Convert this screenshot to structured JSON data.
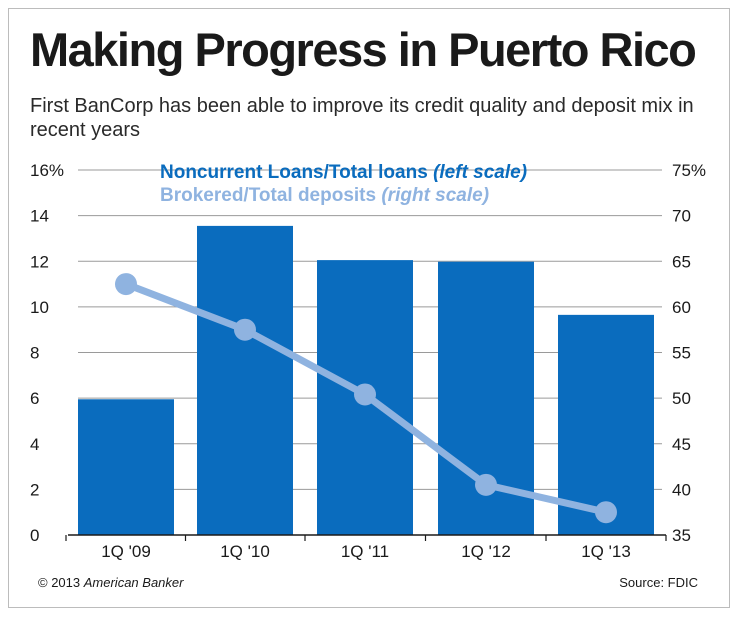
{
  "title": "Making Progress in Puerto Rico",
  "subtitle": "First BanCorp has been able to improve its credit quality and deposit mix in recent years",
  "footer": {
    "copyright": "© 2013",
    "publisher": "American Banker",
    "source": "Source: FDIC"
  },
  "colors": {
    "bar": "#0a6cbe",
    "line": "#8fb3e0",
    "grid": "#9a9a9a"
  },
  "chart_data": {
    "type": "bar",
    "categories": [
      "1Q '09",
      "1Q '10",
      "1Q '11",
      "1Q '12",
      "1Q '13"
    ],
    "series": [
      {
        "name": "Noncurrent Loans/Total loans",
        "scale_note": "(left scale)",
        "type": "bar",
        "axis": "left",
        "values": [
          5.95,
          13.55,
          12.05,
          11.98,
          9.65
        ]
      },
      {
        "name": "Brokered/Total deposits",
        "scale_note": "(right scale)",
        "type": "line",
        "axis": "right",
        "values": [
          62.5,
          57.5,
          50.4,
          40.5,
          37.5
        ]
      }
    ],
    "left_axis": {
      "ylim": [
        0,
        16
      ],
      "ticks": [
        0,
        2,
        4,
        6,
        8,
        10,
        12,
        14,
        16
      ],
      "tick_labels": [
        "0",
        "2",
        "4",
        "6",
        "8",
        "10",
        "12",
        "14",
        "16%"
      ]
    },
    "right_axis": {
      "ylim": [
        35,
        75
      ],
      "ticks": [
        35,
        40,
        45,
        50,
        55,
        60,
        65,
        70,
        75
      ],
      "tick_labels": [
        "35",
        "40",
        "45",
        "50",
        "55",
        "60",
        "65",
        "70",
        "75%"
      ]
    },
    "grid": true
  }
}
